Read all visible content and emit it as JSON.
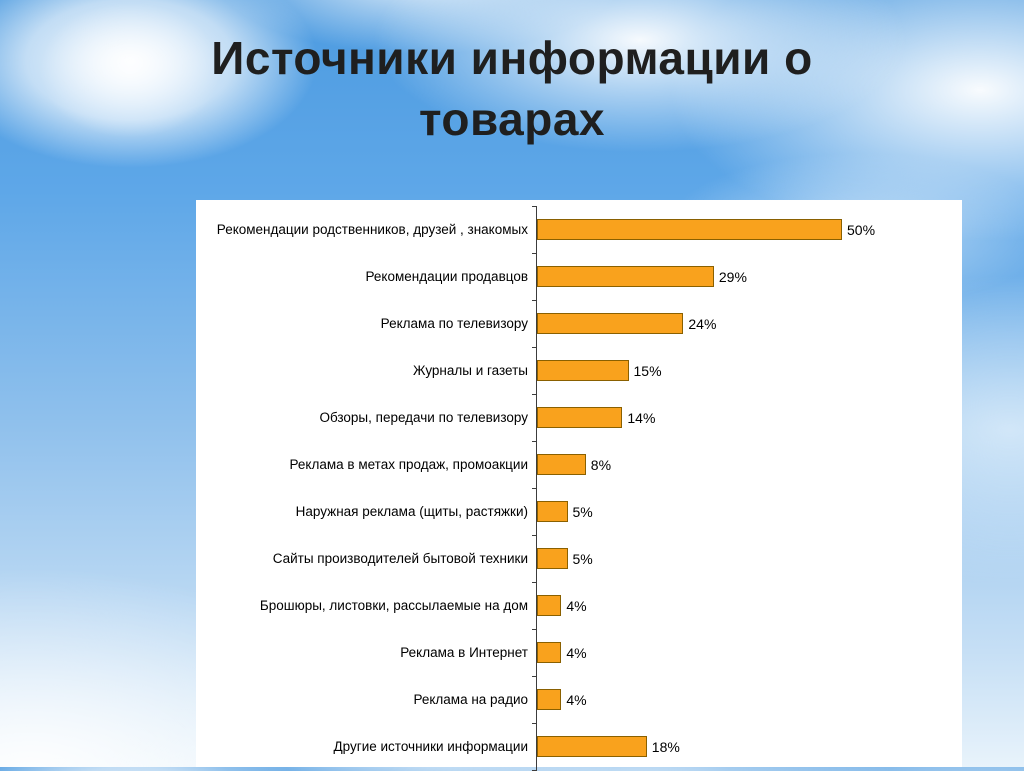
{
  "slide": {
    "title": "Источники информации о товарах"
  },
  "chart_data": {
    "type": "bar",
    "orientation": "horizontal",
    "title": "Источники информации о товарах",
    "xlabel": "",
    "ylabel": "",
    "xlim": [
      0,
      55
    ],
    "grid": false,
    "legend": false,
    "bar_color": "#F9A21D",
    "bar_border_color": "#8A6000",
    "categories": [
      "Рекомендации родственников, друзей , знакомых",
      "Рекомендации продавцов",
      "Реклама по телевизору",
      "Журналы и газеты",
      "Обзоры, передачи по телевизору",
      "Реклама в метах продаж, промоакции",
      "Наружная реклама (щиты, растяжки)",
      "Сайты производителей бытовой техники",
      "Брошюры, листовки, рассылаемые на дом",
      "Реклама в Интернет",
      "Реклама на радио",
      "Другие источники информации"
    ],
    "values": [
      50,
      29,
      24,
      15,
      14,
      8,
      5,
      5,
      4,
      4,
      4,
      18
    ],
    "value_labels": [
      "50%",
      "29%",
      "24%",
      "15%",
      "14%",
      "8%",
      "5%",
      "5%",
      "4%",
      "4%",
      "4%",
      "18%"
    ]
  }
}
